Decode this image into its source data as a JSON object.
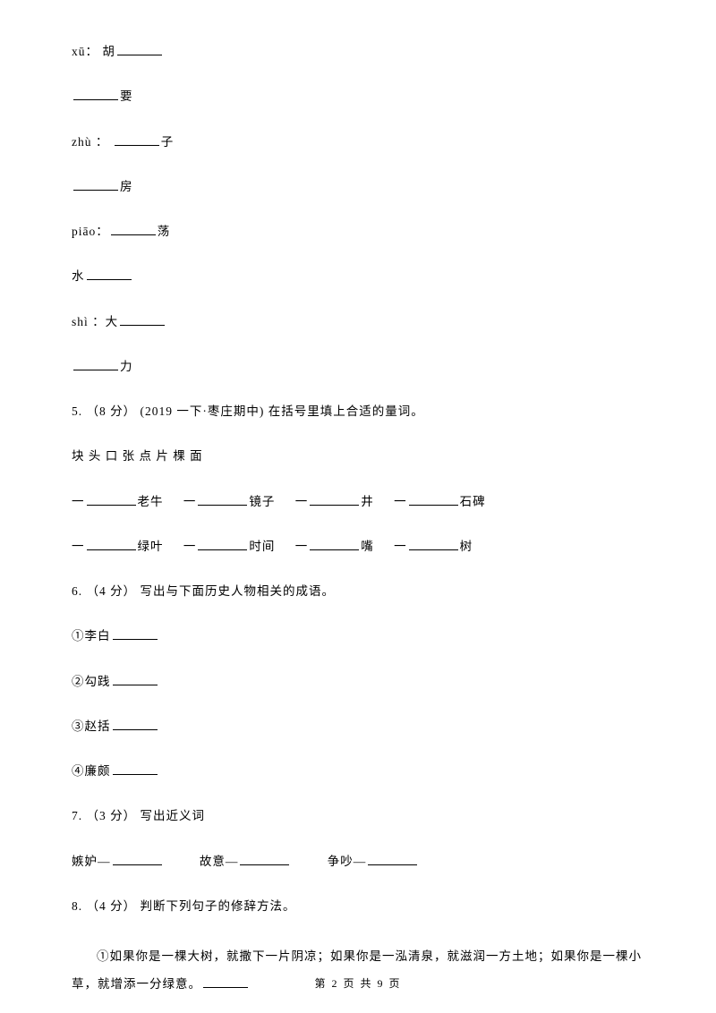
{
  "line1_prefix": "xū：  胡",
  "line2_suffix": "要",
  "line3_prefix": "zhù ： ",
  "line3_suffix": "子",
  "line4_suffix": "房",
  "line5_prefix": "piāo：",
  "line5_suffix": "荡",
  "line6_prefix": "水",
  "line7_prefix": "shì ：大",
  "line8_suffix": "力",
  "q5_header": "5. （8 分） (2019 一下·枣庄期中) 在括号里填上合适的量词。",
  "q5_options": "块   头   口   张   点   片   棵   面",
  "q5_r1_1": "一",
  "q5_r1_1s": "老牛",
  "q5_r1_2": "一",
  "q5_r1_2s": "镜子",
  "q5_r1_3": "一",
  "q5_r1_3s": "井",
  "q5_r1_4": "一",
  "q5_r1_4s": "石碑",
  "q5_r2_1": "一",
  "q5_r2_1s": "绿叶",
  "q5_r2_2": "一",
  "q5_r2_2s": "时间",
  "q5_r2_3": "一",
  "q5_r2_3s": "嘴",
  "q5_r2_4": "一",
  "q5_r2_4s": "树",
  "q6_header": "6. （4 分）  写出与下面历史人物相关的成语。",
  "q6_1": "①李白",
  "q6_2": "②勾践",
  "q6_3": "③赵括",
  "q6_4": "④廉颇",
  "q7_header": "7. （3 分）  写出近义词",
  "q7_1": "嫉妒—",
  "q7_2": "故意—",
  "q7_3": "争吵—",
  "q8_header": "8. （4 分）  判断下列句子的修辞方法。",
  "q8_text1": "①如果你是一棵大树，就撒下一片阴凉；如果你是一泓清泉，就滋润一方土地；如果你是一棵小草，就增添一分绿意。",
  "footer": "第 2 页 共 9 页"
}
